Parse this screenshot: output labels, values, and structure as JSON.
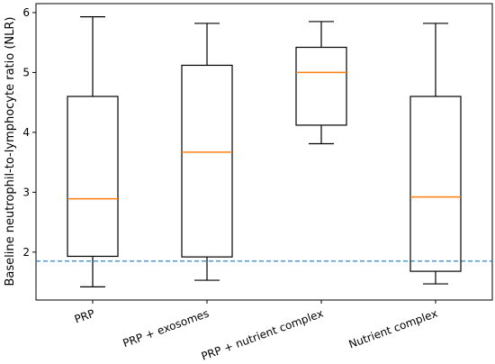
{
  "chart_data": {
    "type": "box",
    "ylabel": "Baseline neutrophil-to-lymphocyte ratio (NLR)",
    "xlabel": "",
    "ylim": [
      1.2,
      6.15
    ],
    "yticks": [
      2,
      3,
      4,
      5,
      6
    ],
    "categories": [
      "PRP",
      "PRP + exosomes",
      "PRP + nutrient complex",
      "Nutrient complex"
    ],
    "boxes": [
      {
        "category": "PRP",
        "whisker_low": 1.42,
        "q1": 1.93,
        "median": 2.89,
        "q3": 4.6,
        "whisker_high": 5.93
      },
      {
        "category": "PRP + exosomes",
        "whisker_low": 1.53,
        "q1": 1.92,
        "median": 3.67,
        "q3": 5.12,
        "whisker_high": 5.82
      },
      {
        "category": "PRP + nutrient complex",
        "whisker_low": 3.81,
        "q1": 4.12,
        "median": 5.0,
        "q3": 5.42,
        "whisker_high": 5.85
      },
      {
        "category": "Nutrient complex",
        "whisker_low": 1.47,
        "q1": 1.68,
        "median": 2.92,
        "q3": 4.6,
        "whisker_high": 5.82
      }
    ],
    "reference_line": {
      "y": 1.85,
      "style": "dashed"
    },
    "grid": false,
    "legend": "none",
    "colors": {
      "box": "#000000",
      "median": "#ff7f0e",
      "reference_line": "#1f77b4"
    }
  }
}
